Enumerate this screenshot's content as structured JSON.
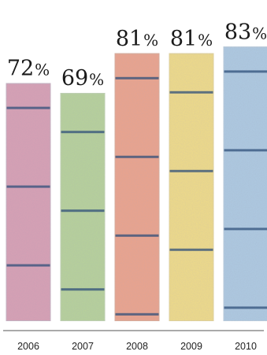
{
  "chart_data": {
    "type": "bar",
    "title": "",
    "xlabel": "",
    "ylabel": "",
    "ylim": [
      0,
      100
    ],
    "grid": false,
    "legend": "none",
    "categories": [
      "2006",
      "2007",
      "2008",
      "2009",
      "2010"
    ],
    "values": [
      72,
      69,
      81,
      81,
      83
    ],
    "value_labels": [
      "72",
      "69",
      "81",
      "81",
      "83"
    ],
    "unit_symbol": "%",
    "bar_colors": [
      "#d9a0b5",
      "#b8d39a",
      "#eda48a",
      "#f1dd86",
      "#aecbe3"
    ],
    "bar_edge_colors": [
      "#c8b5c4",
      "#c3d5b4",
      "#dcae9a",
      "#e4d59b",
      "#bccfdf"
    ],
    "stripe_color": "#2f4f7a"
  }
}
